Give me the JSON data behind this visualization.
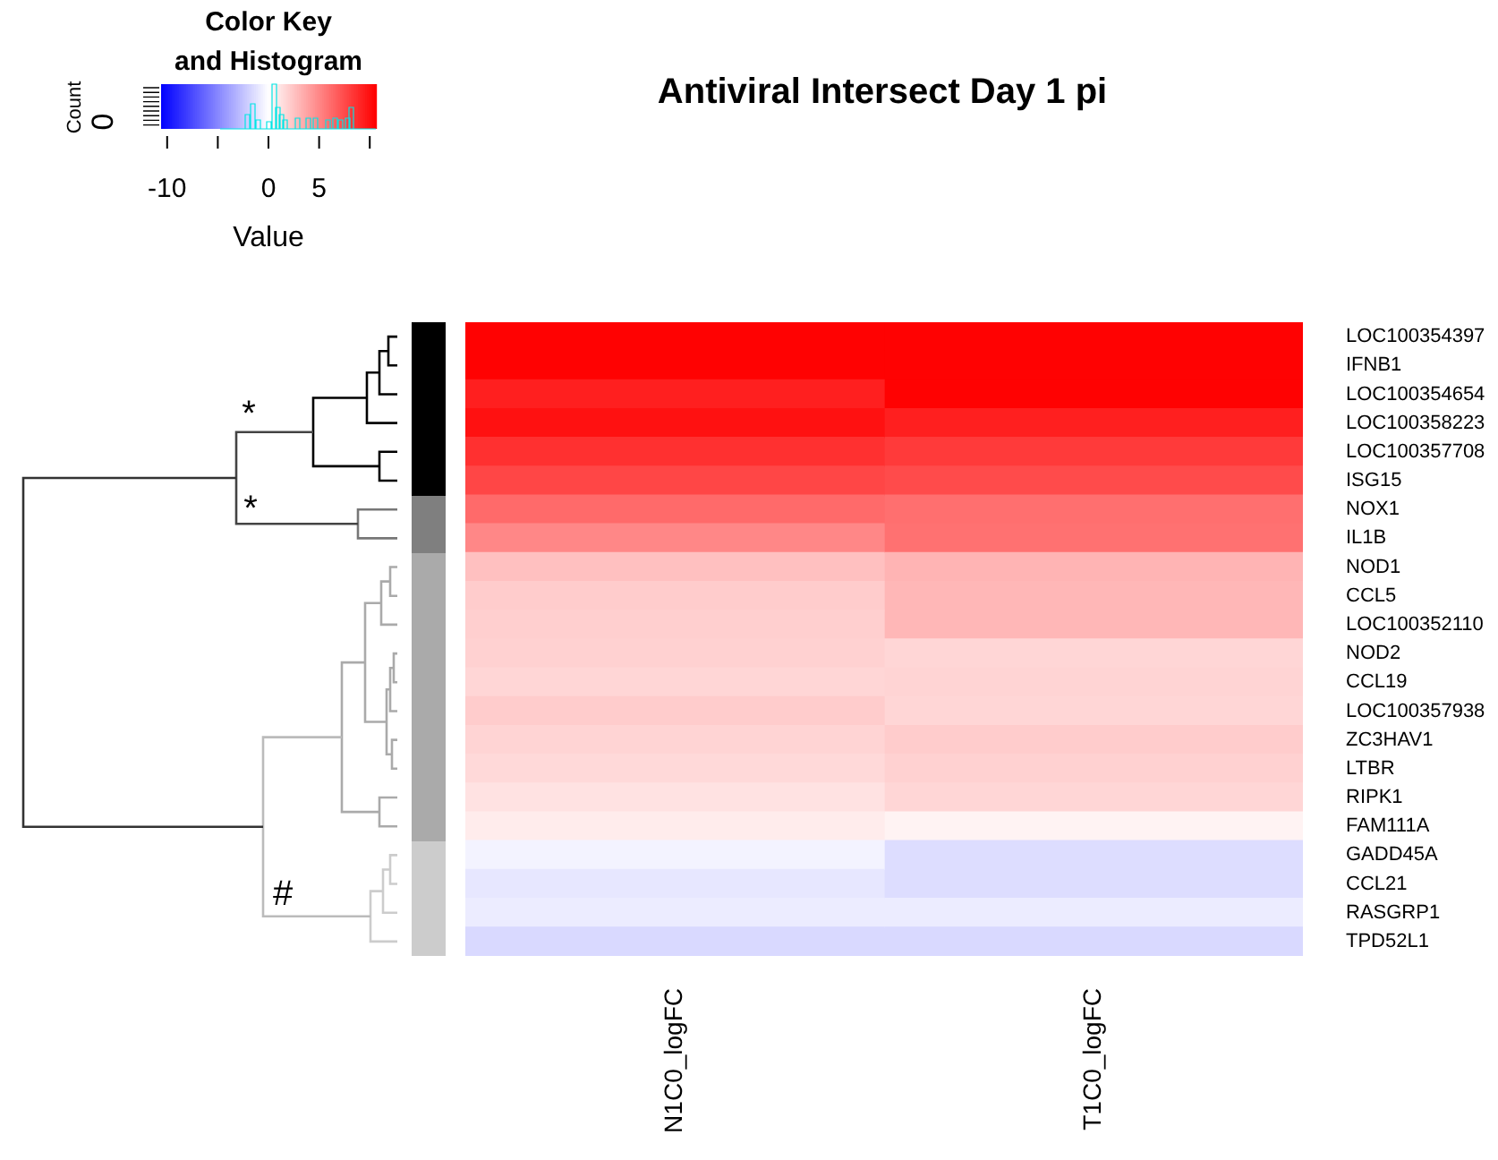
{
  "chart_data": {
    "type": "heatmap",
    "title": "Antiviral Intersect Day 1 pi",
    "categories": [
      "N1C0_logFC",
      "T1C0_logFC"
    ],
    "y_categories": [
      "LOC100354397",
      "IFNB1",
      "LOC100354654",
      "LOC100358223",
      "LOC100357708",
      "ISG15",
      "NOX1",
      "IL1B",
      "NOD1",
      "CCL5",
      "LOC100352110",
      "NOD2",
      "CCL19",
      "LOC100357938",
      "ZC3HAV1",
      "LTBR",
      "RIPK1",
      "FAM111A",
      "GADD45A",
      "CCL21",
      "RASGRP1",
      "TPD52L1"
    ],
    "cells": [
      [
        10.5,
        10.5
      ],
      [
        10.5,
        10.5
      ],
      [
        9.3,
        10.5
      ],
      [
        9.9,
        9.3
      ],
      [
        8.6,
        8.2
      ],
      [
        7.7,
        7.5
      ],
      [
        6.2,
        6
      ],
      [
        5,
        5.9
      ],
      [
        2.6,
        3.1
      ],
      [
        2.1,
        3
      ],
      [
        2,
        3
      ],
      [
        1.9,
        1.7
      ],
      [
        1.7,
        1.8
      ],
      [
        2.1,
        1.7
      ],
      [
        1.8,
        2.1
      ],
      [
        1.6,
        1.9
      ],
      [
        1.2,
        1.7
      ],
      [
        0.8,
        0.5
      ],
      [
        -0.5,
        -1.4
      ],
      [
        -1,
        -1.4
      ],
      [
        -0.8,
        -0.8
      ],
      [
        -1.6,
        -1.6
      ]
    ],
    "clim": [
      -10.6,
      10.6
    ],
    "cticks": [
      -10,
      {
        "value": -5,
        "label": null
      },
      0,
      5,
      {
        "value": 10,
        "label": null
      }
    ],
    "clabel": "Value",
    "legend_title": "Color Key\nand Histogram",
    "annotations": [
      "Count",
      "0",
      "*",
      "*",
      "#"
    ]
  }
}
